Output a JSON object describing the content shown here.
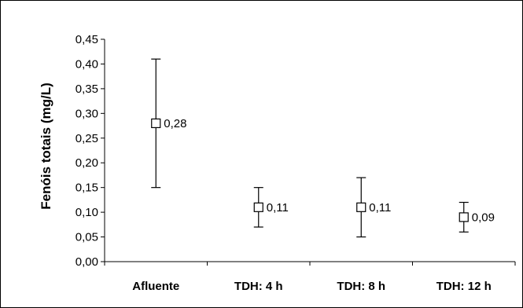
{
  "chart_data": {
    "type": "scatter",
    "title": "",
    "xlabel": "",
    "ylabel": "Fenóis totais (mg/L)",
    "ylim": [
      0,
      0.45
    ],
    "y_ticks": [
      0.0,
      0.05,
      0.1,
      0.15,
      0.2,
      0.25,
      0.3,
      0.35,
      0.4,
      0.45
    ],
    "y_tick_labels": [
      "0,00",
      "0,05",
      "0,10",
      "0,15",
      "0,20",
      "0,25",
      "0,30",
      "0,35",
      "0,40",
      "0,45"
    ],
    "categories": [
      "Afluente",
      "TDH: 4 h",
      "TDH: 8 h",
      "TDH: 12 h"
    ],
    "values": [
      0.28,
      0.11,
      0.11,
      0.09
    ],
    "data_labels": [
      "0,28",
      "0,11",
      "0,11",
      "0,09"
    ],
    "error_low": [
      0.15,
      0.07,
      0.05,
      0.06
    ],
    "error_high": [
      0.41,
      0.15,
      0.17,
      0.12
    ],
    "marker": "hollow-square",
    "grid": false,
    "legend": "none"
  }
}
